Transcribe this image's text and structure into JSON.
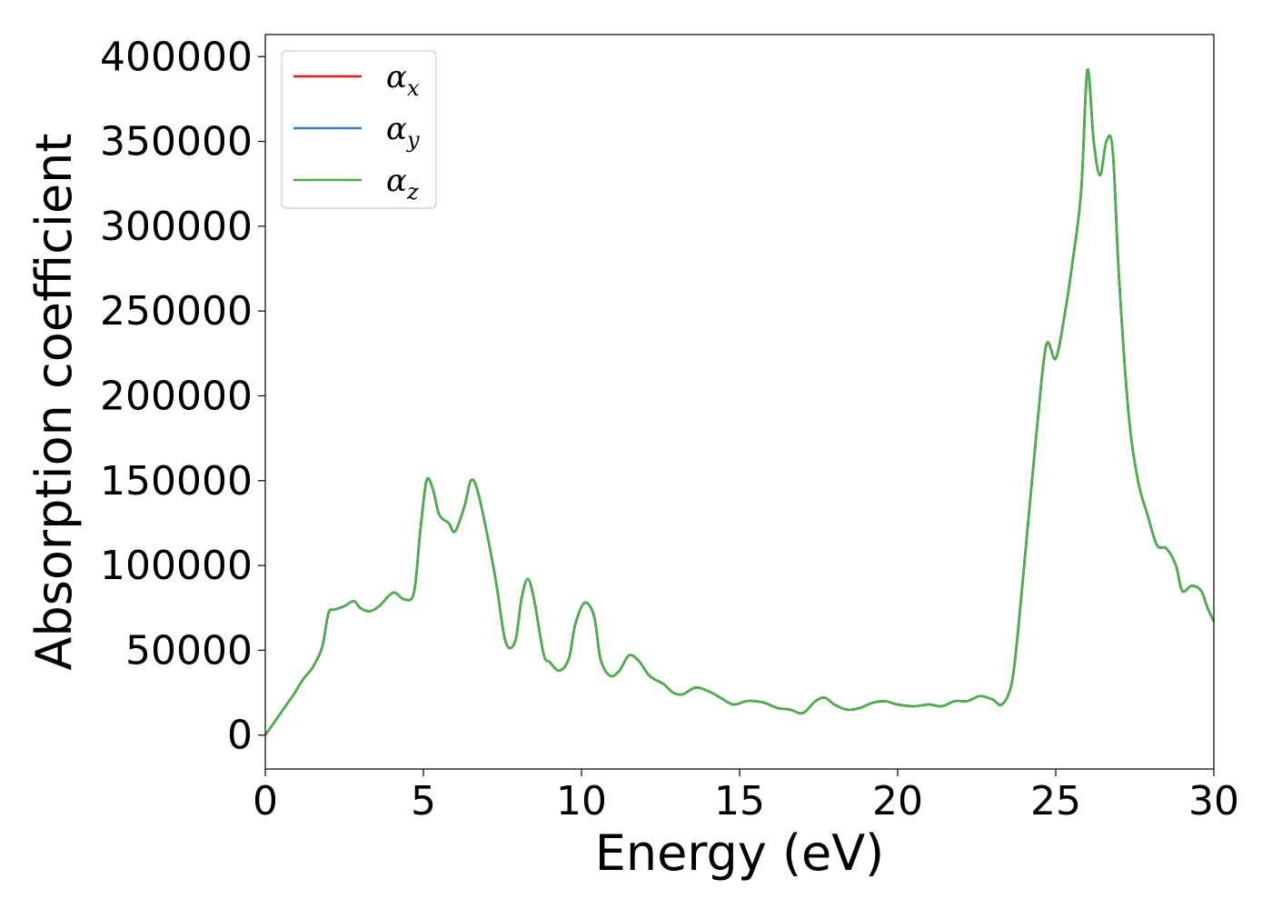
{
  "chart_data": {
    "type": "line",
    "title": "",
    "xlabel": "Energy (eV)",
    "ylabel": "Absorption coefficient",
    "xlim": [
      0,
      30
    ],
    "ylim": [
      -20000,
      413000
    ],
    "xticks": [
      0,
      5,
      10,
      15,
      20,
      25,
      30
    ],
    "xtick_labels": [
      "0",
      "5",
      "10",
      "15",
      "20",
      "25",
      "30"
    ],
    "yticks": [
      0,
      50000,
      100000,
      150000,
      200000,
      250000,
      300000,
      350000,
      400000
    ],
    "ytick_labels": [
      "0",
      "50000",
      "100000",
      "150000",
      "200000",
      "250000",
      "300000",
      "350000",
      "400000"
    ],
    "grid": false,
    "legend": "top-left",
    "x": [
      0,
      0.3,
      0.6,
      0.9,
      1.2,
      1.5,
      1.8,
      2.0,
      2.2,
      2.5,
      2.8,
      3.0,
      3.3,
      3.6,
      3.9,
      4.1,
      4.4,
      4.7,
      4.9,
      5.1,
      5.3,
      5.5,
      5.8,
      6.0,
      6.3,
      6.5,
      6.7,
      7.0,
      7.3,
      7.6,
      7.9,
      8.1,
      8.3,
      8.5,
      8.8,
      9.0,
      9.3,
      9.6,
      9.8,
      10.1,
      10.4,
      10.6,
      10.9,
      11.2,
      11.5,
      11.8,
      12.1,
      12.3,
      12.6,
      12.9,
      13.2,
      13.6,
      14.0,
      14.4,
      14.8,
      15.2,
      15.5,
      15.8,
      16.2,
      16.6,
      17.0,
      17.4,
      17.7,
      18.0,
      18.4,
      18.8,
      19.2,
      19.6,
      20.0,
      20.5,
      21.0,
      21.4,
      21.8,
      22.2,
      22.6,
      23.0,
      23.3,
      23.6,
      23.8,
      24.1,
      24.4,
      24.7,
      25.0,
      25.3,
      25.5,
      25.8,
      26.0,
      26.2,
      26.4,
      26.6,
      26.8,
      27.0,
      27.3,
      27.6,
      27.9,
      28.2,
      28.5,
      28.8,
      29.0,
      29.3,
      29.6,
      29.8,
      30.0
    ],
    "series": [
      {
        "name": "α",
        "sub": "x",
        "color": "#e41a1c",
        "values": [
          0,
          8000,
          16000,
          24000,
          33000,
          40000,
          52000,
          72000,
          74000,
          76000,
          79000,
          75000,
          73000,
          76000,
          82000,
          84000,
          80000,
          84000,
          120000,
          150000,
          145000,
          130000,
          125000,
          120000,
          135000,
          150000,
          145000,
          120000,
          90000,
          55000,
          55000,
          80000,
          92000,
          80000,
          48000,
          43000,
          38000,
          45000,
          65000,
          78000,
          70000,
          45000,
          35000,
          38000,
          47000,
          44000,
          36000,
          33000,
          30000,
          25000,
          24000,
          28000,
          26000,
          22000,
          18000,
          20000,
          20000,
          19000,
          16000,
          15000,
          13000,
          20000,
          22000,
          18000,
          15000,
          16000,
          19000,
          20000,
          18000,
          17000,
          18000,
          17000,
          20000,
          20000,
          23000,
          21000,
          18000,
          30000,
          60000,
          120000,
          180000,
          230000,
          222000,
          250000,
          275000,
          320000,
          392000,
          350000,
          330000,
          350000,
          345000,
          270000,
          190000,
          150000,
          130000,
          112000,
          110000,
          100000,
          85000,
          88000,
          85000,
          75000,
          67000
        ]
      },
      {
        "name": "α",
        "sub": "y",
        "color": "#377eb8",
        "values": [
          0,
          8000,
          16000,
          24000,
          33000,
          40000,
          52000,
          72000,
          74000,
          76000,
          79000,
          75000,
          73000,
          76000,
          82000,
          84000,
          80000,
          84000,
          120000,
          150000,
          145000,
          130000,
          125000,
          120000,
          135000,
          150000,
          145000,
          120000,
          90000,
          55000,
          55000,
          80000,
          92000,
          80000,
          48000,
          43000,
          38000,
          45000,
          65000,
          78000,
          70000,
          45000,
          35000,
          38000,
          47000,
          44000,
          36000,
          33000,
          30000,
          25000,
          24000,
          28000,
          26000,
          22000,
          18000,
          20000,
          20000,
          19000,
          16000,
          15000,
          13000,
          20000,
          22000,
          18000,
          15000,
          16000,
          19000,
          20000,
          18000,
          17000,
          18000,
          17000,
          20000,
          20000,
          23000,
          21000,
          18000,
          30000,
          60000,
          120000,
          180000,
          230000,
          222000,
          250000,
          275000,
          320000,
          392000,
          350000,
          330000,
          350000,
          345000,
          270000,
          190000,
          150000,
          130000,
          112000,
          110000,
          100000,
          85000,
          88000,
          85000,
          75000,
          67000
        ]
      },
      {
        "name": "α",
        "sub": "z",
        "color": "#4daf4a",
        "values": [
          0,
          8000,
          16000,
          24000,
          33000,
          40000,
          52000,
          72000,
          74000,
          76000,
          79000,
          75000,
          73000,
          76000,
          82000,
          84000,
          80000,
          84000,
          120000,
          150000,
          145000,
          130000,
          125000,
          120000,
          135000,
          150000,
          145000,
          120000,
          90000,
          55000,
          55000,
          80000,
          92000,
          80000,
          48000,
          43000,
          38000,
          45000,
          65000,
          78000,
          70000,
          45000,
          35000,
          38000,
          47000,
          44000,
          36000,
          33000,
          30000,
          25000,
          24000,
          28000,
          26000,
          22000,
          18000,
          20000,
          20000,
          19000,
          16000,
          15000,
          13000,
          20000,
          22000,
          18000,
          15000,
          16000,
          19000,
          20000,
          18000,
          17000,
          18000,
          17000,
          20000,
          20000,
          23000,
          21000,
          18000,
          30000,
          60000,
          120000,
          180000,
          230000,
          222000,
          250000,
          275000,
          320000,
          392000,
          350000,
          330000,
          350000,
          345000,
          270000,
          190000,
          150000,
          130000,
          112000,
          110000,
          100000,
          85000,
          88000,
          85000,
          75000,
          67000
        ]
      }
    ]
  }
}
